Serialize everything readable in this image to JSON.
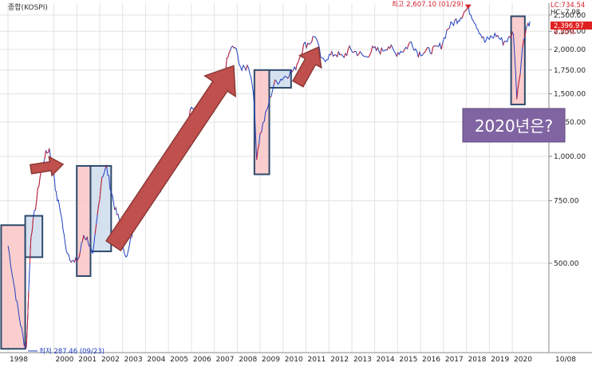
{
  "chart_data": {
    "type": "line",
    "title": "종합(KOSPI)",
    "x_start_label": "1998",
    "x_tick_labels": [
      "1998",
      "2000",
      "2001",
      "2002",
      "2003",
      "2004",
      "2005",
      "2006",
      "2007",
      "2008",
      "2009",
      "2010",
      "2011",
      "2012",
      "2013",
      "2014",
      "2015",
      "2016",
      "2017",
      "2018",
      "2019",
      "2020"
    ],
    "x_tick_years": [
      1998,
      2000,
      2001,
      2002,
      2003,
      2004,
      2005,
      2006,
      2007,
      2008,
      2009,
      2010,
      2011,
      2012,
      2013,
      2014,
      2015,
      2016,
      2017,
      2018,
      2019,
      2020
    ],
    "y_scale": "log",
    "y_tick_labels": [
      "2,500.00",
      "2,250.00",
      "2,000.00",
      "1,750.00",
      "1,500.00",
      "1,250.00",
      "1,000.00",
      "750.00",
      "500.00"
    ],
    "y_ticks": [
      2500,
      2250,
      2000,
      1750,
      1500,
      1250,
      1000,
      750,
      500
    ],
    "ylim": [
      280,
      2700
    ],
    "end_date_label": "10/08",
    "series": [
      {
        "x": [
          1998.0,
          1998.3,
          1998.5,
          1998.7,
          1998.8,
          1999.0,
          1999.2,
          1999.4,
          1999.6,
          1999.8,
          2000.0,
          2000.1,
          2000.3,
          2000.5,
          2000.7,
          2000.9,
          2001.1,
          2001.3,
          2001.5,
          2001.7,
          2001.9,
          2002.1,
          2002.3,
          2002.5,
          2002.7,
          2002.9,
          2003.0,
          2003.2,
          2003.4,
          2003.6,
          2003.8,
          2004.0,
          2004.3,
          2004.6,
          2004.9,
          2005.2,
          2005.5,
          2005.8,
          2006.0,
          2006.3,
          2006.6,
          2006.9,
          2007.2,
          2007.5,
          2007.7,
          2007.9,
          2008.2,
          2008.5,
          2008.7,
          2008.85,
          2009.0,
          2009.3,
          2009.6,
          2009.9,
          2010.2,
          2010.5,
          2010.9,
          2011.2,
          2011.4,
          2011.7,
          2011.9,
          2012.3,
          2012.6,
          2012.9,
          2013.3,
          2013.6,
          2013.9,
          2014.3,
          2014.6,
          2014.9,
          2015.3,
          2015.6,
          2015.9,
          2016.3,
          2016.6,
          2016.9,
          2017.2,
          2017.5,
          2017.7,
          2017.9,
          2018.08,
          2018.3,
          2018.5,
          2018.8,
          2019.0,
          2019.3,
          2019.6,
          2019.9,
          2020.05,
          2020.2,
          2020.35,
          2020.5,
          2020.65,
          2020.77
        ],
        "y": [
          560,
          420,
          350,
          300,
          287.46,
          600,
          720,
          880,
          1000,
          1050,
          900,
          780,
          700,
          560,
          520,
          500,
          520,
          600,
          580,
          520,
          680,
          880,
          930,
          800,
          700,
          650,
          560,
          520,
          600,
          680,
          780,
          850,
          900,
          800,
          860,
          1000,
          1120,
          1250,
          1380,
          1330,
          1450,
          1400,
          1550,
          1800,
          2000,
          2030,
          1750,
          1800,
          1550,
          1000,
          1150,
          1350,
          1600,
          1650,
          1700,
          1750,
          2050,
          2100,
          2200,
          1850,
          1900,
          1950,
          1900,
          2000,
          1950,
          1900,
          2000,
          1980,
          2050,
          1950,
          2000,
          2100,
          1950,
          1980,
          2000,
          2050,
          2300,
          2400,
          2450,
          2550,
          2607.1,
          2450,
          2300,
          2100,
          2150,
          2200,
          2100,
          2150,
          2250,
          1480,
          1750,
          2150,
          2350,
          2397
        ]
      }
    ],
    "lc_label": "LC:734.54",
    "hc_label": "HC:-7.98",
    "current_value": "2,396.97",
    "change_label": "0.50%",
    "high_annotation": "최고 2,607.10 (01/29)",
    "low_annotation": "최저 287.46 (09/23)",
    "callout_text": "2020년은?",
    "colors": {
      "series_line": "#1f3fbf",
      "series_up": "#d0202a",
      "rise_box_fill": "#f9c6c6",
      "flat_box_fill": "#cfdcec",
      "box_stroke": "#2e4a6c",
      "arrow_fill": "#c0504d",
      "arrow_stroke": "#8c3836",
      "callout_fill": "#8064a2",
      "current_badge": "#e02020"
    },
    "annotation_boxes": [
      {
        "kind": "rise",
        "x": [
          1997.7,
          1998.75
        ],
        "y": [
          287,
          640
        ]
      },
      {
        "kind": "flat",
        "x": [
          1998.75,
          1999.5
        ],
        "y": [
          520,
          680
        ]
      },
      {
        "kind": "rise",
        "x": [
          2001.0,
          2001.6
        ],
        "y": [
          460,
          940
        ]
      },
      {
        "kind": "flat",
        "x": [
          2001.6,
          2002.5
        ],
        "y": [
          540,
          940
        ]
      },
      {
        "kind": "rise",
        "x": [
          2008.75,
          2009.4
        ],
        "y": [
          890,
          1750
        ]
      },
      {
        "kind": "flat",
        "x": [
          2009.4,
          2010.35
        ],
        "y": [
          1560,
          1750
        ]
      },
      {
        "kind": "rise",
        "x": [
          2019.95,
          2020.55
        ],
        "y": [
          1400,
          2480
        ]
      }
    ],
    "arrows": [
      {
        "from": [
          1999.0,
          920
        ],
        "to": [
          2000.4,
          950
        ]
      },
      {
        "from": [
          2002.6,
          560
        ],
        "to": [
          2007.85,
          1800
        ]
      },
      {
        "from": [
          2010.65,
          1600
        ],
        "to": [
          2011.55,
          2030
        ]
      }
    ]
  }
}
